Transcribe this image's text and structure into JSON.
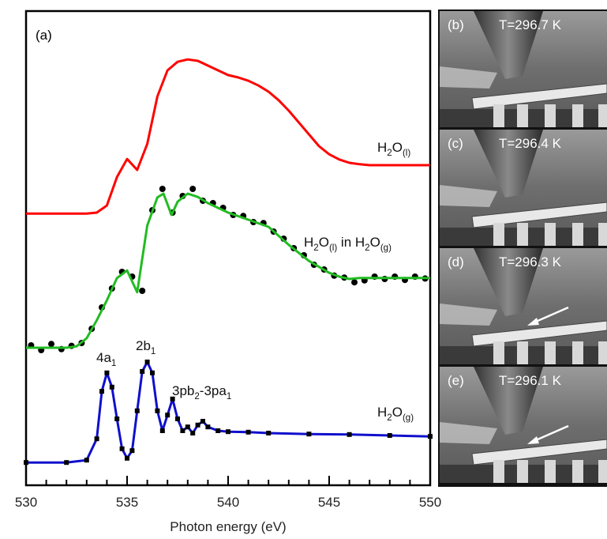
{
  "chart_data": {
    "type": "line",
    "panel_label": "(a)",
    "xlabel": "Photon energy (eV)",
    "xlim": [
      530,
      550
    ],
    "xticks": [
      530,
      535,
      540,
      545,
      550
    ],
    "xminorticks": [
      531,
      532,
      533,
      534,
      536,
      537,
      538,
      539,
      541,
      542,
      543,
      544,
      546,
      547,
      548,
      549
    ],
    "ylim": [
      0,
      100
    ],
    "series": [
      {
        "name": [
          "H",
          "2",
          "O",
          "(l)"
        ],
        "color": "#ff0000",
        "x": [
          530,
          531,
          532,
          533,
          533.5,
          534,
          534.5,
          535,
          535.5,
          536,
          536.5,
          537,
          537.5,
          538,
          538.5,
          539,
          539.5,
          540,
          540.5,
          541,
          541.5,
          542,
          542.5,
          543,
          543.5,
          544,
          544.5,
          545,
          545.5,
          546,
          546.5,
          547,
          548,
          550
        ],
        "values": [
          57.3,
          57.3,
          57.3,
          57.3,
          57.5,
          59,
          65,
          68.8,
          66.5,
          72,
          82,
          87.5,
          89.3,
          89.8,
          89.5,
          88.5,
          87.5,
          86.5,
          86,
          85.3,
          84.3,
          83,
          81.2,
          79,
          76.5,
          74,
          71.5,
          69.8,
          68.7,
          68,
          67.7,
          67.5,
          67.5,
          67.5
        ]
      },
      {
        "name": [
          "H",
          "2",
          "O",
          "(l)",
          " in H",
          "2",
          "O",
          "(g)"
        ],
        "color": "#22bb22",
        "x": [
          530,
          531,
          532,
          532.5,
          533,
          533.5,
          534,
          534.5,
          535,
          535.5,
          536,
          536.5,
          536.8,
          537.2,
          537.5,
          538,
          538.5,
          539,
          540,
          541,
          542,
          543,
          544,
          545,
          545.5,
          546,
          546.5,
          548,
          550
        ],
        "values": [
          29,
          29,
          29,
          29.3,
          31,
          34.8,
          39,
          43.7,
          45.3,
          40.7,
          54.8,
          60.7,
          61.5,
          57,
          59.8,
          61.5,
          60.8,
          59.5,
          57.5,
          56,
          54.5,
          50.7,
          47.3,
          44.8,
          44,
          43.5,
          43.7,
          43.7,
          43.7
        ],
        "points": {
          "color": "#000000",
          "x": [
            530.25,
            530.75,
            531.25,
            531.75,
            532.25,
            532.75,
            533.25,
            533.75,
            534.25,
            534.75,
            535.25,
            535.75,
            536.25,
            536.75,
            537.25,
            537.75,
            538.25,
            538.75,
            539.25,
            539.75,
            540.25,
            540.75,
            541.25,
            541.75,
            542.25,
            542.75,
            543.25,
            543.75,
            544.25,
            544.75,
            545.25,
            545.75,
            546.25,
            546.75,
            547.25,
            547.75,
            548.25,
            548.75,
            549.25,
            549.75
          ],
          "values": [
            29.5,
            28.5,
            29.8,
            28.7,
            29.4,
            30,
            33,
            37.5,
            41.5,
            45,
            44,
            41,
            58,
            62.5,
            57.5,
            61,
            62.5,
            60,
            59.5,
            58.5,
            57,
            56.8,
            55.5,
            55.3,
            53.5,
            52,
            50,
            48.5,
            46.5,
            45.5,
            44.2,
            43.8,
            42.8,
            43.2,
            44,
            43.5,
            44,
            43.3,
            44,
            43.6
          ]
        }
      },
      {
        "name": [
          "H",
          "2",
          "O",
          "(g)"
        ],
        "color": "#1010cc",
        "marker_color": "#000000",
        "x": [
          530,
          532,
          533,
          533.5,
          533.75,
          534,
          534.25,
          534.5,
          534.75,
          535,
          535.25,
          535.5,
          535.75,
          536,
          536.25,
          536.5,
          536.75,
          537,
          537.25,
          537.5,
          537.75,
          538,
          538.25,
          538.5,
          538.75,
          539,
          539.5,
          540,
          541,
          542,
          544,
          546,
          548,
          550
        ],
        "values": [
          4.8,
          4.8,
          5.3,
          9.8,
          19.8,
          23.7,
          20.7,
          14,
          7.7,
          5.7,
          7.3,
          15.7,
          24,
          26,
          23.7,
          15.7,
          11.5,
          14.8,
          18.2,
          14,
          11.5,
          12.3,
          11,
          12.7,
          13.5,
          12.3,
          11.5,
          11.3,
          11.2,
          11,
          10.8,
          10.7,
          10.5,
          10.3
        ]
      }
    ],
    "annotations": [
      {
        "text": [
          "4a",
          "1"
        ]
      },
      {
        "text": [
          "2b",
          "1"
        ]
      },
      {
        "text": [
          "3pb",
          "2",
          "-3pa",
          "1"
        ]
      }
    ]
  },
  "image_panels": [
    {
      "label": "(b)",
      "temperature": "T=296.7 K"
    },
    {
      "label": "(c)",
      "temperature": "T=296.4 K"
    },
    {
      "label": "(d)",
      "temperature": "T=296.3 K"
    },
    {
      "label": "(e)",
      "temperature": "T=296.1 K"
    }
  ]
}
